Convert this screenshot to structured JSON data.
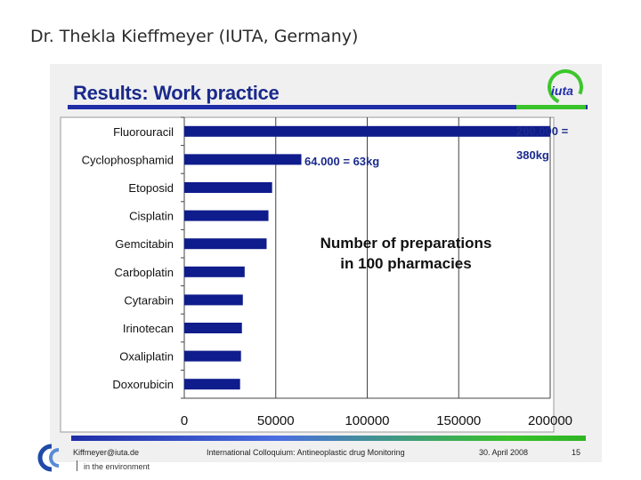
{
  "page": {
    "author_line": "Dr. Thekla Kieffmeyer (IUTA, Germany)"
  },
  "slide": {
    "heading": "Results: Work practice",
    "logo_text": "iuta",
    "colors": {
      "bar": "#0f1c8c",
      "heading": "#1a2a8c",
      "accent_green": "#39c42b"
    }
  },
  "footer": {
    "email": "Kiffmeyer@iuta.de",
    "conference": "International Colloquium: Antineoplastic drug Monitoring",
    "date": "30. April 2008",
    "page_number": "15",
    "tagline": "in the environment"
  },
  "chart_data": {
    "type": "bar",
    "orientation": "horizontal",
    "categories": [
      "Fluorouracil",
      "Cyclophosphamid",
      "Etoposid",
      "Cisplatin",
      "Gemcitabin",
      "Carboplatin",
      "Cytarabin",
      "Irinotecan",
      "Oxaliplatin",
      "Doxorubicin"
    ],
    "values": [
      200000,
      64000,
      48000,
      46000,
      45000,
      33000,
      32000,
      31500,
      31000,
      30500
    ],
    "xlim": [
      0,
      200000
    ],
    "xticks": [
      "0",
      "50000",
      "100000",
      "150000",
      "200000"
    ],
    "xtick_values": [
      0,
      50000,
      100000,
      150000,
      200000
    ],
    "annotations": {
      "fluorouracil_line1": "200.000 =",
      "fluorouracil_line2": "380kg",
      "cyclophosphamid": "64.000 = 63kg",
      "caption_line1": "Number of preparations",
      "caption_line2": "in 100 pharmacies"
    },
    "grid": "vertical"
  }
}
